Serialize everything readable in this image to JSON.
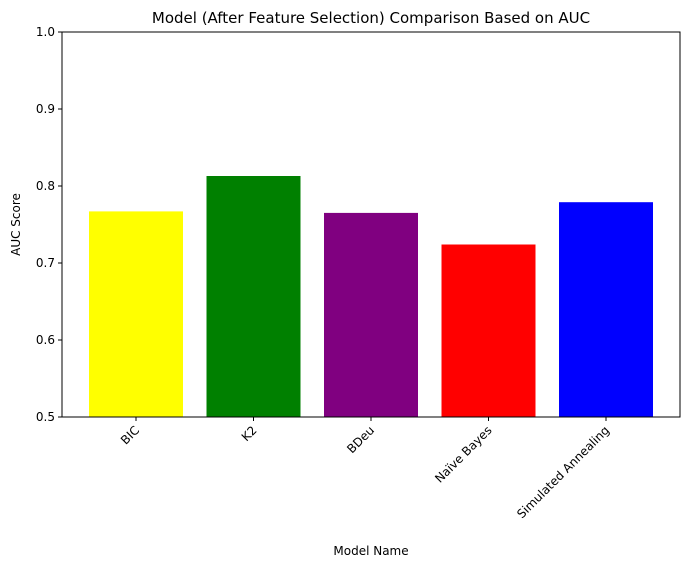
{
  "chart_data": {
    "type": "bar",
    "title": "Model (After Feature Selection) Comparison Based on AUC",
    "xlabel": "Model Name",
    "ylabel": "AUC Score",
    "categories": [
      "BIC",
      "K2",
      "BDeu",
      "Naïve Bayes",
      "Simulated Annealing"
    ],
    "values": [
      0.767,
      0.813,
      0.765,
      0.724,
      0.779
    ],
    "colors": [
      "#ffff00",
      "#008000",
      "#800080",
      "#ff0000",
      "#0000ff"
    ],
    "ylim": [
      0.5,
      1.0
    ],
    "yticks": [
      "0.5",
      "0.6",
      "0.7",
      "0.8",
      "0.9",
      "1.0"
    ],
    "grid": false,
    "legend": "none"
  }
}
